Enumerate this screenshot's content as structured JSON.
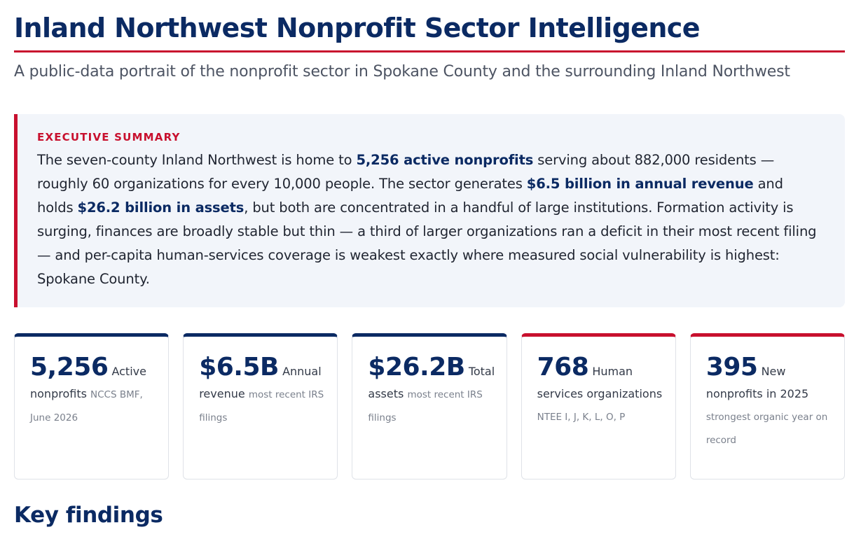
{
  "header": {
    "title": "Inland Northwest Nonprofit Sector Intelligence",
    "subtitle": "A public-data portrait of the nonprofit sector in Spokane County and the surrounding Inland Northwest"
  },
  "summary": {
    "label": "EXECUTIVE SUMMARY",
    "parts": [
      "The seven-county Inland Northwest is home to ",
      "5,256 active nonprofits",
      " serving about 882,000 residents — roughly 60 organizations for every 10,000 people. The sector generates ",
      "$6.5 billion in annual revenue",
      " and holds ",
      "$26.2 billion in assets",
      ", but both are concentrated in a handful of large institutions. Formation activity is surging, finances are broadly stable but thin — a third of larger organizations ran a deficit in their most recent filing — and per-capita human-services coverage is weakest exactly where measured social vulnerability is highest: Spokane County."
    ]
  },
  "cards": [
    {
      "value": "5,256",
      "label": "Active nonprofits",
      "note": "NCCS BMF, June 2026"
    },
    {
      "value": "$6.5B",
      "label": "Annual revenue",
      "note": "most recent IRS filings"
    },
    {
      "value": "$26.2B",
      "label": "Total assets",
      "note": "most recent IRS filings"
    },
    {
      "value": "768",
      "label": "Human services organizations",
      "note": "NTEE I, J, K, L, O, P"
    },
    {
      "value": "395",
      "label": "New nonprofits in 2025",
      "note": "strongest organic year on record"
    }
  ],
  "colors": {
    "navy": "#0b2a63",
    "red": "#c8102e",
    "summary_bg": "#f2f5fa"
  },
  "section": {
    "title": "Key findings"
  }
}
